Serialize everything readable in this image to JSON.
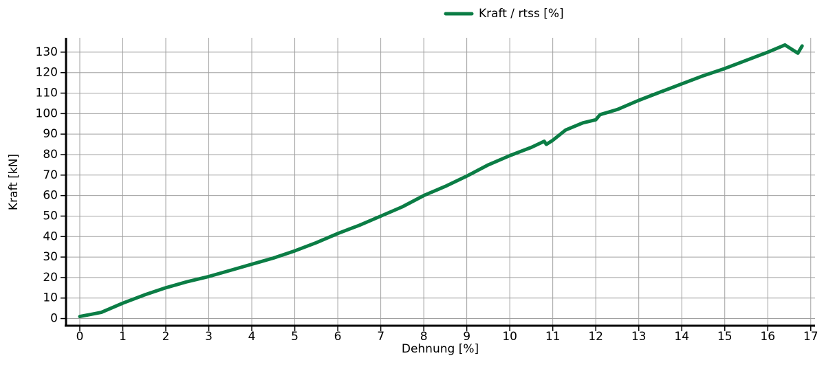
{
  "chart_data": {
    "type": "line",
    "x_label": "Dehnung [%]",
    "y_label": "Kraft [kN]",
    "legend": "top",
    "grid": true,
    "xlim": [
      -0.32,
      17.1
    ],
    "ylim": [
      -3.5,
      137
    ],
    "xticks": [
      0,
      1,
      2,
      3,
      4,
      5,
      6,
      7,
      8,
      9,
      10,
      11,
      12,
      13,
      14,
      15,
      16,
      17
    ],
    "yticks": [
      0,
      10,
      20,
      30,
      40,
      50,
      60,
      70,
      80,
      90,
      100,
      110,
      120,
      130
    ],
    "x": [
      0,
      0.5,
      1,
      1.5,
      2,
      2.5,
      3,
      3.5,
      4,
      4.5,
      5,
      5.5,
      6,
      6.5,
      7,
      7.5,
      8,
      8.5,
      9,
      9.5,
      10,
      10.5,
      10.8,
      10.85,
      11,
      11.3,
      11.7,
      12,
      12.1,
      12.5,
      13,
      13.5,
      14,
      14.5,
      15,
      15.5,
      16,
      16.4,
      16.7,
      16.8
    ],
    "series": [
      {
        "name": "Kraft / rtss [%]",
        "color": "#0b7d45",
        "values": [
          1,
          3,
          7.5,
          11.5,
          15,
          18,
          20.5,
          23.5,
          26.5,
          29.5,
          33,
          37,
          41.5,
          45.5,
          50,
          54.5,
          60,
          64.5,
          69.5,
          75,
          79.5,
          83.5,
          86.5,
          85,
          87,
          92,
          95.5,
          97,
          99.5,
          102,
          106.5,
          110.5,
          114.5,
          118.5,
          122,
          126,
          130,
          133.5,
          129.5,
          133
        ]
      }
    ]
  }
}
